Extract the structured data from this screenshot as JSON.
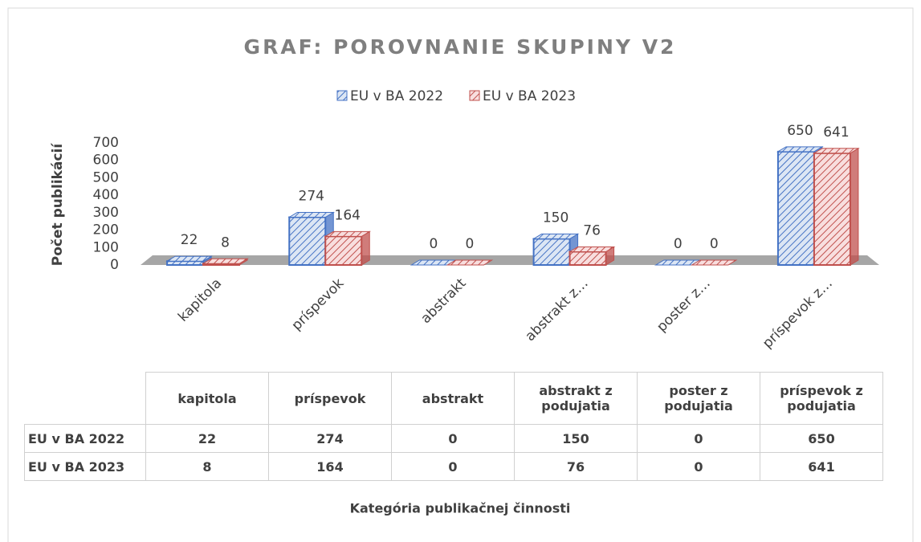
{
  "chart_data": {
    "type": "bar3d",
    "title": "GRAF: POROVNANIE SKUPINY V2",
    "y_axis_label": "Počet publikácií",
    "x_axis_label": "Kategória publikačnej činnosti",
    "categories": [
      "kapitola",
      "príspevok",
      "abstrakt",
      "abstrakt z…",
      "poster z…",
      "príspevok z…"
    ],
    "table_columns": [
      "kapitola",
      "príspevok",
      "abstrakt",
      "abstrakt z podujatia",
      "poster z podujatia",
      "príspevok z podujatia"
    ],
    "series": [
      {
        "name": "EU v BA 2022",
        "color": "#4472c4",
        "values": [
          22,
          274,
          0,
          150,
          0,
          650
        ]
      },
      {
        "name": "EU v BA 2023",
        "color": "#c0504d",
        "values": [
          8,
          164,
          0,
          76,
          0,
          641
        ]
      }
    ],
    "ylim": [
      0,
      700
    ],
    "yticks": [
      0,
      100,
      200,
      300,
      400,
      500,
      600,
      700
    ],
    "legend": "top",
    "grid": false
  }
}
